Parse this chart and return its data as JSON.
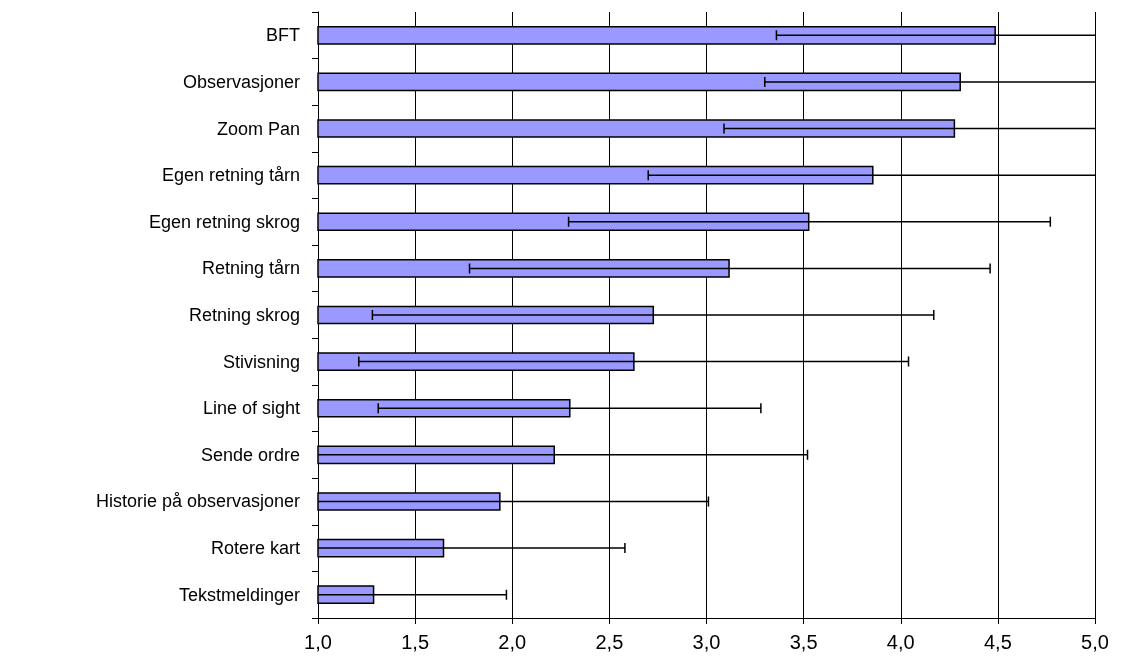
{
  "chart_data": {
    "type": "bar",
    "orientation": "horizontal",
    "categories": [
      "BFT",
      "Observasjoner",
      "Zoom Pan",
      "Egen retning tårn",
      "Egen retning skrog",
      "Retning tårn",
      "Retning skrog",
      "Stivisning",
      "Line of sight",
      "Sende ordre",
      "Historie på observasjoner",
      "Rotere kart",
      "Tekstmeldinger"
    ],
    "values": [
      4.49,
      4.31,
      4.28,
      3.86,
      3.53,
      3.12,
      2.73,
      2.63,
      2.3,
      2.22,
      1.94,
      1.65,
      1.29
    ],
    "errors": [
      [
        3.36,
        5.0
      ],
      [
        3.3,
        5.0
      ],
      [
        3.09,
        5.0
      ],
      [
        2.7,
        5.0
      ],
      [
        2.29,
        4.77
      ],
      [
        1.78,
        4.46
      ],
      [
        1.28,
        4.17
      ],
      [
        1.21,
        4.04
      ],
      [
        1.31,
        3.28
      ],
      [
        1.0,
        3.52
      ],
      [
        1.0,
        3.01
      ],
      [
        1.0,
        2.58
      ],
      [
        1.0,
        1.97
      ]
    ],
    "color": "#9999ff",
    "xlim": [
      1.0,
      5.0
    ],
    "xticks": [
      {
        "value": 1.0,
        "label": "1,0"
      },
      {
        "value": 1.5,
        "label": "1,5"
      },
      {
        "value": 2.0,
        "label": "2,0"
      },
      {
        "value": 2.5,
        "label": "2,5"
      },
      {
        "value": 3.0,
        "label": "3,0"
      },
      {
        "value": 3.5,
        "label": "3,5"
      },
      {
        "value": 4.0,
        "label": "4,0"
      },
      {
        "value": 4.5,
        "label": "4,5"
      },
      {
        "value": 5.0,
        "label": "5,0"
      }
    ],
    "grid": "x"
  }
}
